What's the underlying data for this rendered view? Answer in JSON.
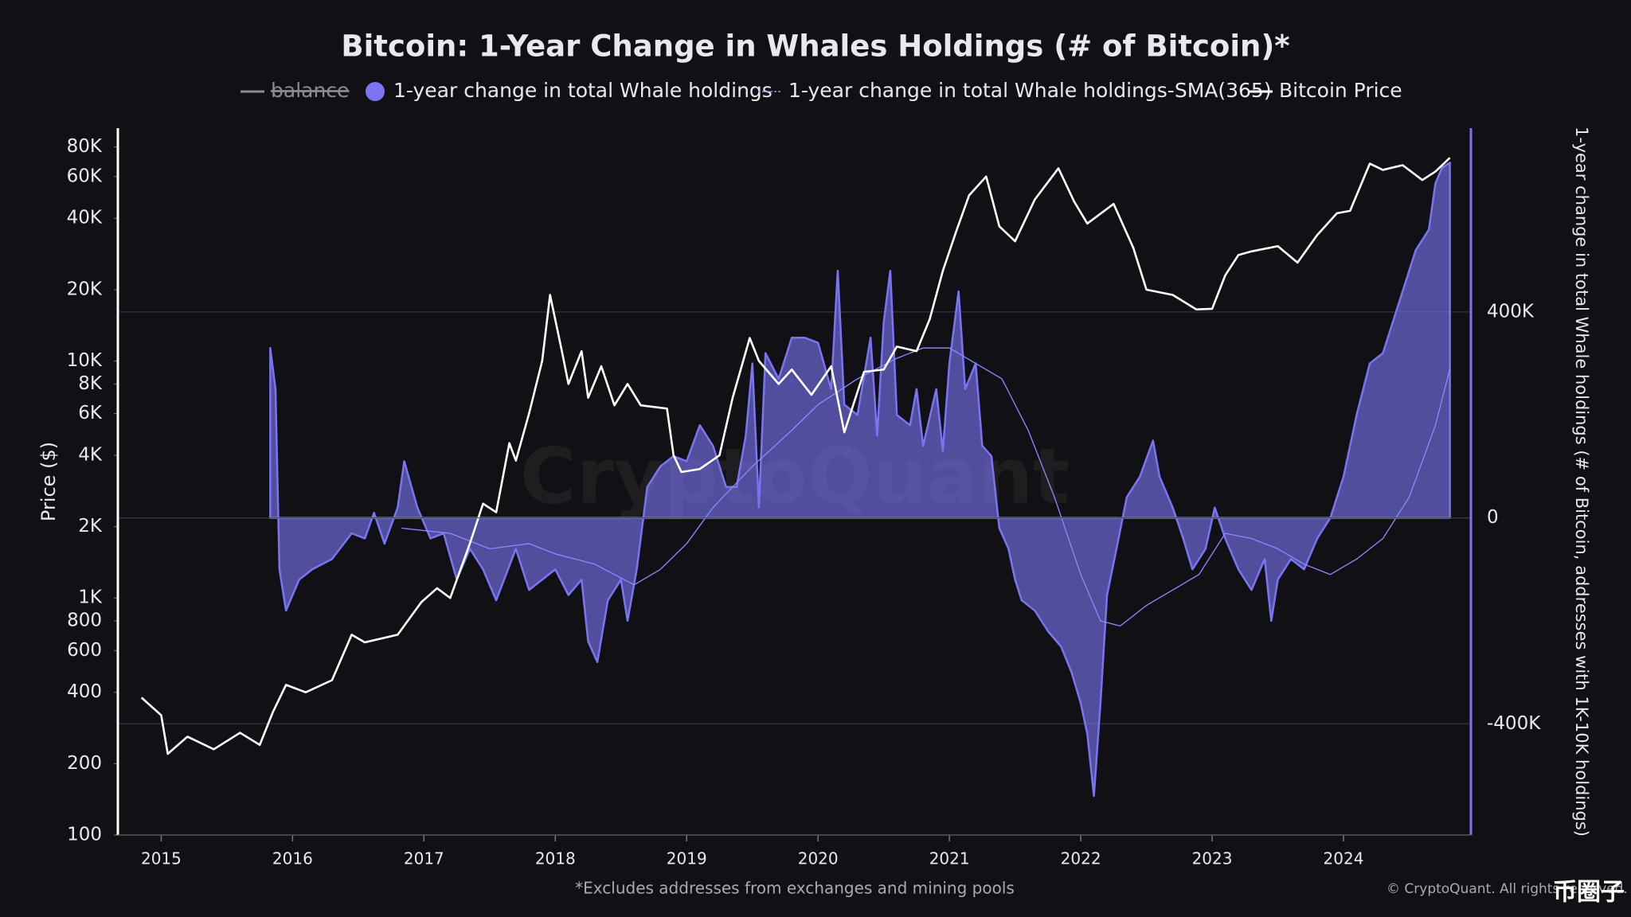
{
  "chart_data": {
    "type": "line",
    "title": "Bitcoin: 1-Year Change in Whales Holdings (# of Bitcoin)*",
    "y_label": "Price ($)",
    "y2_label": "1-year change in total Whale holdings (# of Bitcoin, addresses with 1K-10K holdings)",
    "footnote": "*Excludes addresses from exchanges and mining pools",
    "credit": "© CryptoQuant. All rights reserved.",
    "watermark": "CryptoQuant",
    "watermark_logo": "币圈子",
    "hidden_series": [
      {
        "name": "balance",
        "color": "#8a8a94"
      }
    ],
    "log_scale": true,
    "grid": true,
    "xlim": [
      2014.67,
      2024.97
    ],
    "xticks": [
      2015,
      2016,
      2017,
      2018,
      2019,
      2020,
      2021,
      2022,
      2023,
      2024
    ],
    "ylim": [
      100,
      96000
    ],
    "yticks": [
      100,
      200,
      400,
      600,
      800,
      {
        "value": 1000,
        "label": "1K"
      },
      {
        "value": 2000,
        "label": "2K"
      },
      {
        "value": 4000,
        "label": "4K"
      },
      {
        "value": 6000,
        "label": "6K"
      },
      {
        "value": 8000,
        "label": "8K"
      },
      {
        "value": 10000,
        "label": "10K"
      },
      {
        "value": 20000,
        "label": "20K"
      },
      {
        "value": 40000,
        "label": "40K"
      },
      {
        "value": 60000,
        "label": "60K"
      },
      {
        "value": 80000,
        "label": "80K"
      }
    ],
    "y2lim": [
      -616000,
      757000
    ],
    "y2ticks": [
      {
        "value": -400000,
        "label": "-400K"
      },
      0,
      {
        "value": 400000,
        "label": "400K"
      }
    ],
    "series": [
      {
        "name": "1-year change in total Whale holdings",
        "color": "#7b74f2",
        "style": "area",
        "axis": "y2",
        "x": [
          2015.83,
          2015.87,
          2015.9,
          2015.95,
          2016.05,
          2016.15,
          2016.3,
          2016.45,
          2016.55,
          2016.62,
          2016.7,
          2016.8,
          2016.85,
          2016.95,
          2017.05,
          2017.15,
          2017.25,
          2017.35,
          2017.45,
          2017.55,
          2017.7,
          2017.8,
          2017.9,
          2018.0,
          2018.1,
          2018.2,
          2018.25,
          2018.32,
          2018.4,
          2018.5,
          2018.55,
          2018.62,
          2018.7,
          2018.8,
          2018.9,
          2019.0,
          2019.1,
          2019.2,
          2019.3,
          2019.38,
          2019.45,
          2019.5,
          2019.55,
          2019.6,
          2019.7,
          2019.8,
          2019.9,
          2020.0,
          2020.1,
          2020.15,
          2020.2,
          2020.3,
          2020.4,
          2020.45,
          2020.5,
          2020.55,
          2020.6,
          2020.7,
          2020.75,
          2020.8,
          2020.9,
          2020.95,
          2021.0,
          2021.07,
          2021.12,
          2021.2,
          2021.25,
          2021.32,
          2021.38,
          2021.45,
          2021.5,
          2021.55,
          2021.65,
          2021.75,
          2021.85,
          2021.93,
          2022.0,
          2022.05,
          2022.1,
          2022.15,
          2022.2,
          2022.28,
          2022.35,
          2022.45,
          2022.55,
          2022.6,
          2022.7,
          2022.78,
          2022.85,
          2022.95,
          2023.02,
          2023.1,
          2023.2,
          2023.3,
          2023.4,
          2023.45,
          2023.5,
          2023.6,
          2023.7,
          2023.8,
          2023.9,
          2024.0,
          2024.1,
          2024.2,
          2024.3,
          2024.4,
          2024.5,
          2024.55,
          2024.65,
          2024.7,
          2024.75,
          2024.81
        ],
        "values": [
          330000,
          250000,
          -100000,
          -180000,
          -120000,
          -100000,
          -80000,
          -30000,
          -40000,
          10000,
          -50000,
          20000,
          110000,
          20000,
          -40000,
          -30000,
          -120000,
          -60000,
          -100000,
          -160000,
          -60000,
          -140000,
          -120000,
          -100000,
          -150000,
          -120000,
          -240000,
          -280000,
          -160000,
          -120000,
          -200000,
          -100000,
          60000,
          100000,
          120000,
          110000,
          180000,
          140000,
          60000,
          60000,
          160000,
          300000,
          20000,
          320000,
          270000,
          350000,
          350000,
          340000,
          250000,
          480000,
          220000,
          200000,
          350000,
          160000,
          380000,
          480000,
          200000,
          180000,
          250000,
          140000,
          250000,
          130000,
          300000,
          440000,
          250000,
          300000,
          140000,
          120000,
          -20000,
          -60000,
          -120000,
          -160000,
          -180000,
          -220000,
          -250000,
          -300000,
          -360000,
          -420000,
          -540000,
          -360000,
          -150000,
          -50000,
          40000,
          80000,
          150000,
          80000,
          20000,
          -40000,
          -100000,
          -60000,
          20000,
          -40000,
          -100000,
          -140000,
          -80000,
          -200000,
          -120000,
          -80000,
          -100000,
          -40000,
          0,
          80000,
          200000,
          300000,
          320000,
          400000,
          480000,
          520000,
          560000,
          650000,
          680000,
          690000
        ]
      },
      {
        "name": "1-year change in total Whale holdings-SMA(365)",
        "color": "#8f88ff",
        "style": "line",
        "axis": "y2",
        "x": [
          2016.83,
          2017.2,
          2017.5,
          2017.8,
          2018.0,
          2018.3,
          2018.6,
          2018.8,
          2019.0,
          2019.2,
          2019.5,
          2019.8,
          2020.0,
          2020.3,
          2020.6,
          2020.8,
          2021.0,
          2021.2,
          2021.4,
          2021.6,
          2021.8,
          2022.0,
          2022.15,
          2022.3,
          2022.5,
          2022.7,
          2022.9,
          2023.1,
          2023.3,
          2023.5,
          2023.7,
          2023.9,
          2024.1,
          2024.3,
          2024.5,
          2024.7,
          2024.81
        ],
        "values": [
          -20000,
          -30000,
          -60000,
          -50000,
          -70000,
          -90000,
          -130000,
          -100000,
          -50000,
          20000,
          100000,
          170000,
          220000,
          270000,
          310000,
          330000,
          330000,
          300000,
          270000,
          170000,
          40000,
          -110000,
          -200000,
          -210000,
          -170000,
          -140000,
          -110000,
          -30000,
          -40000,
          -60000,
          -90000,
          -110000,
          -80000,
          -40000,
          40000,
          180000,
          290000
        ]
      },
      {
        "name": "Bitcoin Price",
        "color": "#ffffff",
        "style": "line",
        "axis": "y",
        "x": [
          2014.85,
          2015.0,
          2015.05,
          2015.2,
          2015.4,
          2015.6,
          2015.75,
          2015.85,
          2015.95,
          2016.1,
          2016.3,
          2016.45,
          2016.55,
          2016.8,
          2016.98,
          2017.1,
          2017.2,
          2017.35,
          2017.45,
          2017.55,
          2017.65,
          2017.7,
          2017.8,
          2017.9,
          2017.96,
          2018.05,
          2018.1,
          2018.2,
          2018.25,
          2018.35,
          2018.45,
          2018.55,
          2018.65,
          2018.85,
          2018.9,
          2018.96,
          2019.1,
          2019.25,
          2019.35,
          2019.48,
          2019.55,
          2019.7,
          2019.8,
          2019.95,
          2020.1,
          2020.2,
          2020.35,
          2020.5,
          2020.6,
          2020.75,
          2020.85,
          2020.95,
          2021.05,
          2021.15,
          2021.28,
          2021.38,
          2021.5,
          2021.65,
          2021.83,
          2021.95,
          2022.05,
          2022.25,
          2022.4,
          2022.5,
          2022.7,
          2022.88,
          2023.0,
          2023.1,
          2023.2,
          2023.3,
          2023.5,
          2023.65,
          2023.8,
          2023.95,
          2024.05,
          2024.2,
          2024.3,
          2024.45,
          2024.6,
          2024.7,
          2024.81
        ],
        "values": [
          380,
          320,
          220,
          260,
          230,
          270,
          240,
          330,
          430,
          400,
          450,
          700,
          650,
          700,
          960,
          1100,
          1000,
          1700,
          2500,
          2300,
          4500,
          3800,
          6000,
          10000,
          19000,
          11000,
          8000,
          11000,
          7000,
          9500,
          6500,
          8000,
          6500,
          6300,
          4000,
          3400,
          3500,
          4000,
          7000,
          12500,
          10000,
          8000,
          9200,
          7200,
          9500,
          5000,
          9000,
          9200,
          11500,
          11000,
          15000,
          24000,
          35000,
          50000,
          60000,
          37000,
          32000,
          48000,
          65000,
          47000,
          38000,
          46000,
          30000,
          20000,
          19000,
          16500,
          16600,
          23000,
          28000,
          29000,
          30500,
          26000,
          34000,
          42000,
          43000,
          68000,
          64000,
          67000,
          58000,
          63000,
          72000
        ]
      }
    ]
  }
}
